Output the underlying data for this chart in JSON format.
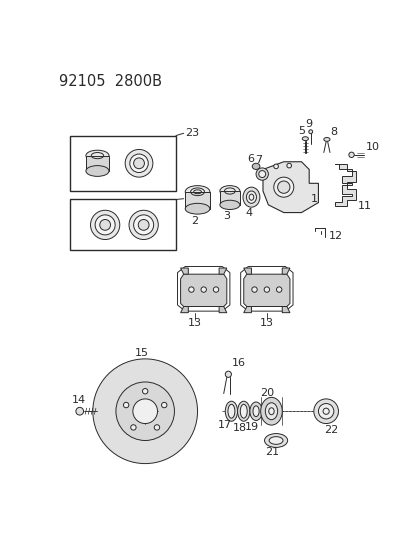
{
  "title": "92105  2800B",
  "bg_color": "#ffffff",
  "line_color": "#2a2a2a",
  "title_fontsize": 10.5,
  "label_fontsize": 8
}
